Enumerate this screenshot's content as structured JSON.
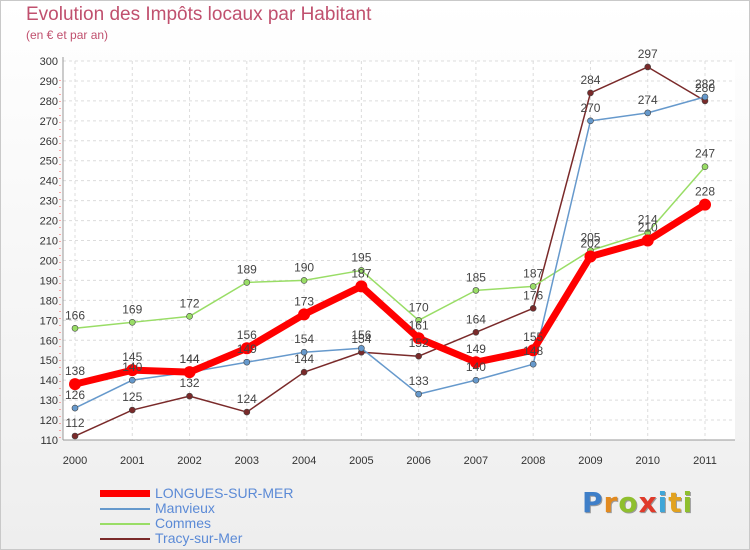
{
  "title": "Evolution des Impôts locaux par Habitant",
  "subtitle": "(en € et par an)",
  "logo": {
    "letters": [
      "P",
      "r",
      "o",
      "x",
      "i",
      "t",
      "i"
    ],
    "colors": [
      "#3f7fc8",
      "#e28a1f",
      "#8fbf2e",
      "#e03a2a",
      "#3fa6d8",
      "#e2a21f",
      "#8fbf2e"
    ]
  },
  "chart_data": {
    "type": "line",
    "title": "Evolution des Impôts locaux par Habitant",
    "subtitle": "(en € et par an)",
    "xlabel": "",
    "ylabel": "",
    "ylim": [
      110,
      300
    ],
    "y_ticks": [
      110,
      120,
      130,
      140,
      150,
      160,
      170,
      180,
      190,
      200,
      210,
      220,
      230,
      240,
      250,
      260,
      270,
      280,
      290,
      300
    ],
    "categories": [
      "2000",
      "2001",
      "2002",
      "2003",
      "2004",
      "2005",
      "2006",
      "2007",
      "2008",
      "2009",
      "2010",
      "2011"
    ],
    "series": [
      {
        "name": "Tracy-sur-Mer",
        "color": "#7a2a2a",
        "width": 1.5,
        "marker": 3,
        "values": [
          112,
          125,
          132,
          124,
          144,
          154,
          152,
          164,
          176,
          284,
          297,
          280
        ],
        "labels": [
          "112",
          "125",
          "132",
          "124",
          "144",
          "154",
          "152",
          "164",
          "176",
          "284",
          "297",
          "280"
        ]
      },
      {
        "name": "Commes",
        "color": "#99dd66",
        "width": 1.5,
        "marker": 3,
        "values": [
          166,
          169,
          172,
          189,
          190,
          195,
          170,
          185,
          187,
          205,
          214,
          247
        ],
        "labels": [
          "166",
          "169",
          "172",
          "189",
          "190",
          "195",
          "170",
          "185",
          "187",
          "205",
          "214",
          "247"
        ]
      },
      {
        "name": "Manvieux",
        "color": "#6699cc",
        "width": 1.5,
        "marker": 3,
        "values": [
          126,
          140,
          144,
          149,
          154,
          156,
          133,
          140,
          148,
          270,
          274,
          282
        ],
        "labels": [
          "126",
          "140",
          "144",
          "149",
          "154",
          "156",
          "133",
          "140",
          "148",
          "270",
          "274",
          "282"
        ]
      },
      {
        "name": "LONGUES-SUR-MER",
        "color": "#ff0000",
        "width": 7,
        "marker": 6,
        "values": [
          138,
          145,
          144,
          156,
          173,
          187,
          161,
          149,
          155,
          202,
          210,
          228
        ],
        "labels": [
          "138",
          "145",
          "144",
          "156",
          "173",
          "187",
          "161",
          "149",
          "155",
          "202",
          "210",
          "228"
        ]
      }
    ],
    "legend_order": [
      "LONGUES-SUR-MER",
      "Manvieux",
      "Commes",
      "Tracy-sur-Mer"
    ],
    "legend_position": "bottom-left"
  }
}
